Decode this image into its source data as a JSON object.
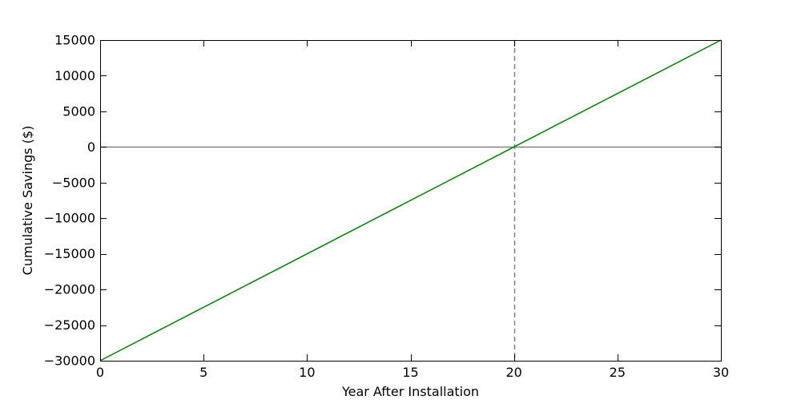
{
  "chart_data": {
    "type": "line",
    "title": "",
    "xlabel": "Year After Installation",
    "ylabel": "Cumulative Savings ($)",
    "xlim": [
      0,
      30
    ],
    "ylim": [
      -30000,
      15000
    ],
    "xticks": [
      0,
      5,
      10,
      15,
      20,
      25,
      30
    ],
    "yticks": [
      -30000,
      -25000,
      -20000,
      -15000,
      -10000,
      -5000,
      0,
      5000,
      10000,
      15000
    ],
    "xtick_labels": [
      "0",
      "5",
      "10",
      "15",
      "20",
      "25",
      "30"
    ],
    "ytick_labels": [
      "−30000",
      "−25000",
      "−20000",
      "−15000",
      "−10000",
      "−5000",
      "0",
      "5000",
      "10000",
      "15000"
    ],
    "grid": false,
    "series": [
      {
        "x": [
          0,
          30
        ],
        "y": [
          -30000,
          15000
        ],
        "color": "#008000"
      }
    ],
    "reference_lines": [
      {
        "orientation": "horizontal",
        "value": 0,
        "color": "#808080",
        "style": "solid"
      },
      {
        "orientation": "vertical",
        "value": 20,
        "color": "#808080",
        "style": "dashed"
      }
    ]
  }
}
